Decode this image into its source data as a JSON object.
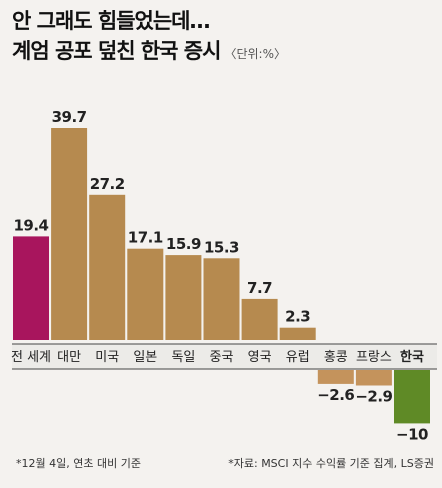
{
  "title": {
    "line1": "안 그래도 힘들었는데…",
    "line2": "계엄 공포 덮친 한국 증시",
    "unit": "〈단위:%〉"
  },
  "chart_data": {
    "type": "bar",
    "categories": [
      "전 세계",
      "대만",
      "미국",
      "일본",
      "독일",
      "중국",
      "영국",
      "유럽",
      "홍콩",
      "프랑스",
      "한국"
    ],
    "values": [
      19.4,
      39.7,
      27.2,
      17.1,
      15.9,
      15.3,
      7.7,
      2.3,
      -2.6,
      -2.9,
      -10
    ],
    "value_labels": [
      "19.4",
      "39.7",
      "27.2",
      "17.1",
      "15.9",
      "15.3",
      "7.7",
      "2.3",
      "−2.6",
      "−2.9",
      "−10"
    ],
    "colors": {
      "world": "#a8155d",
      "positive": "#b68a4f",
      "negative": "#c4935c",
      "korea": "#5f8a26"
    },
    "ylim": [
      -10,
      39.7
    ]
  },
  "footnotes": {
    "left": "*12월 4일, 연초 대비 기준",
    "right": "*자료: MSCI 지수 수익률 기준 집계,  LS증권"
  }
}
